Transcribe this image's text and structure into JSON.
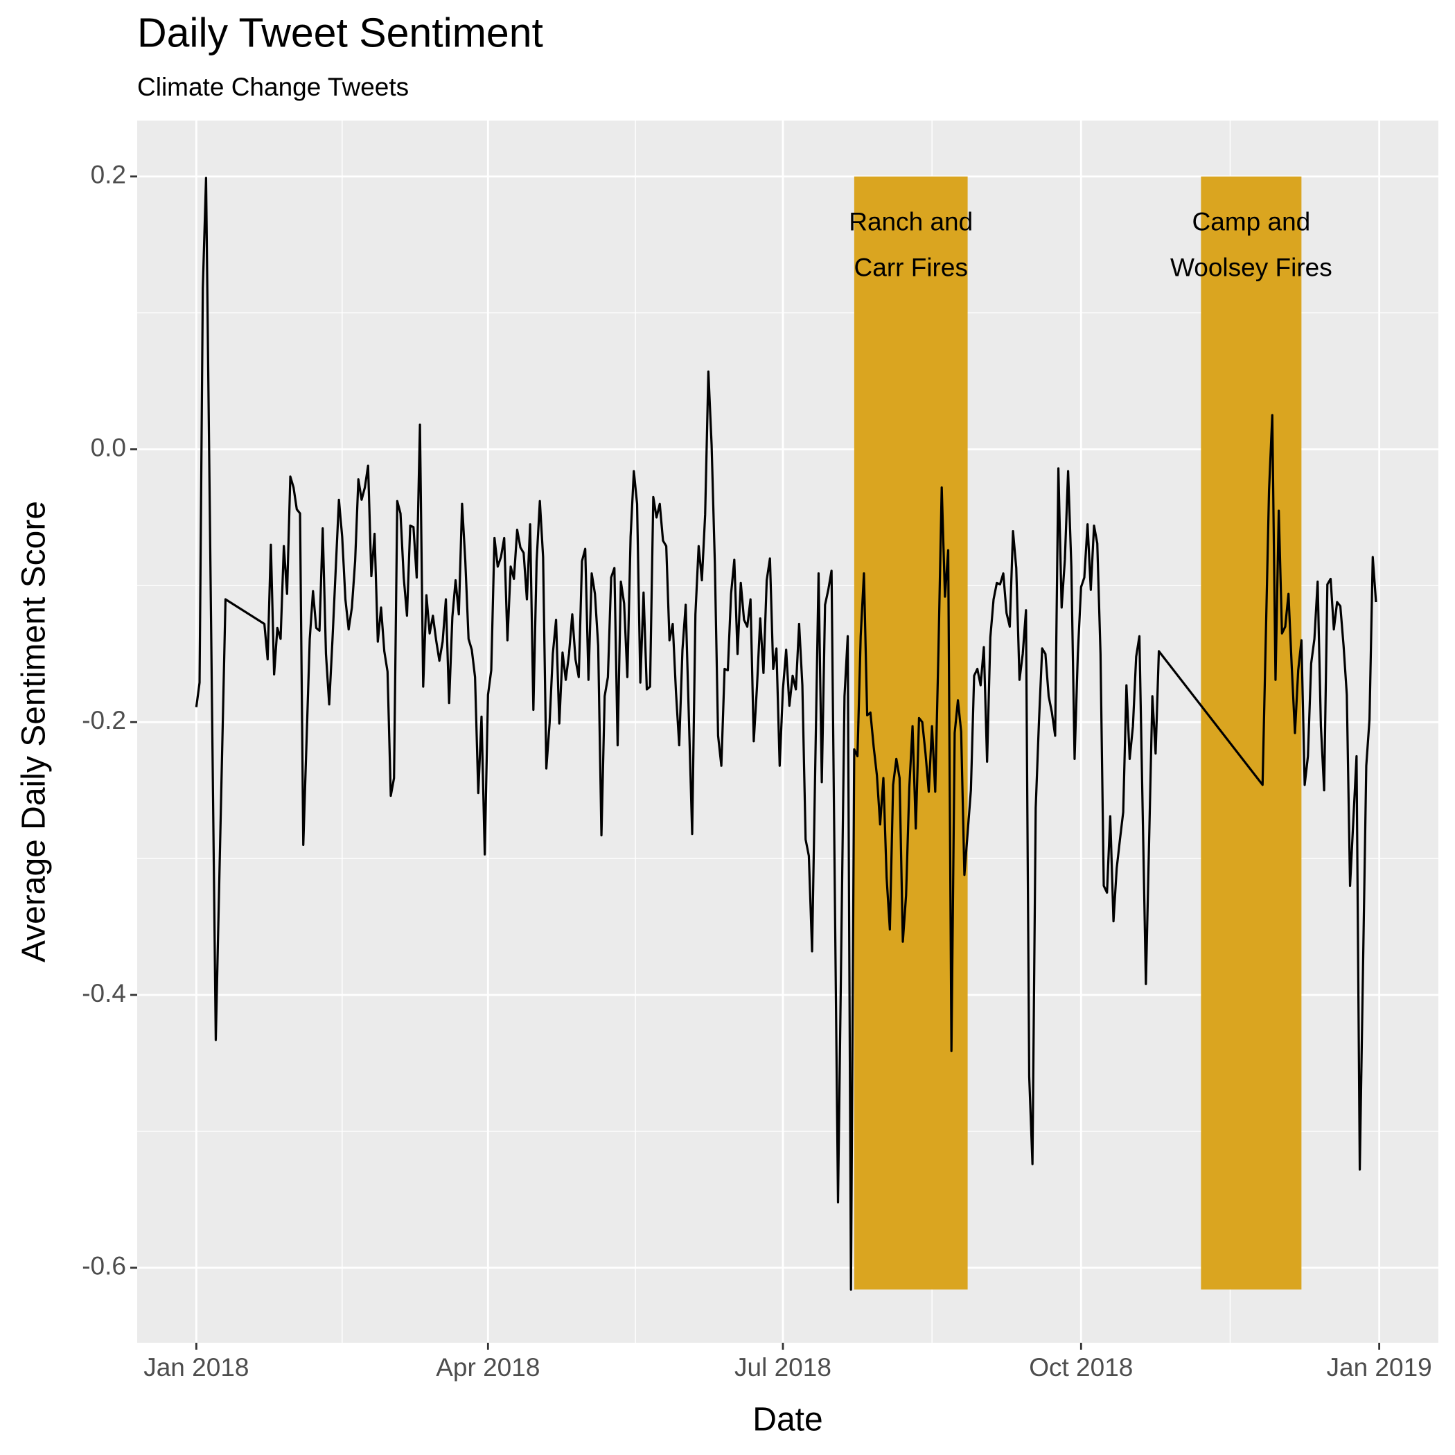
{
  "chart_data": {
    "type": "line",
    "title": "Daily Tweet Sentiment",
    "subtitle": "Climate Change Tweets",
    "x_label": "Date",
    "y_label": "Average Daily Sentiment Score",
    "xlim": [
      -18.25,
      383.25
    ],
    "ylim": [
      -0.655,
      0.241
    ],
    "xticks": [
      {
        "value": 0,
        "label": "Jan 2018"
      },
      {
        "value": 90,
        "label": "Apr 2018"
      },
      {
        "value": 181,
        "label": "Jul 2018"
      },
      {
        "value": 273,
        "label": "Oct 2018"
      },
      {
        "value": 365,
        "label": "Jan 2019"
      }
    ],
    "xminor_ticks": [
      45,
      135.5,
      227,
      319
    ],
    "yticks": [
      -0.6,
      -0.4,
      -0.2,
      {
        "value": 0,
        "label": "0.0"
      },
      0.2
    ],
    "yminor_ticks": [
      -0.5,
      -0.3,
      -0.1,
      0.1
    ],
    "grid": true,
    "shaded_periods": [
      {
        "lines": [
          "Ranch and",
          "Carr Fires"
        ],
        "xmin": 203,
        "xmax": 238,
        "ymin": -0.616,
        "ymax": 0.2,
        "color": "#DAA520"
      },
      {
        "lines": [
          "Camp and",
          "Woolsey Fires"
        ],
        "xmin": 310,
        "xmax": 341,
        "ymin": -0.616,
        "ymax": 0.2,
        "color": "#DAA520"
      }
    ],
    "series": [
      {
        "color": "#000000",
        "x": [
          0,
          1,
          2,
          3,
          6,
          9,
          21,
          22,
          23,
          24,
          25,
          26,
          27,
          28,
          29,
          30,
          31,
          32,
          33,
          35,
          36,
          37,
          38,
          39,
          40,
          41,
          42,
          44,
          45,
          46,
          47,
          48,
          49,
          50,
          51,
          52,
          53,
          54,
          55,
          56,
          57,
          58,
          59,
          60,
          61,
          62,
          63,
          64,
          65,
          66,
          67,
          68,
          69,
          70,
          71,
          72,
          73,
          74,
          75,
          76,
          77,
          78,
          79,
          80,
          81,
          82,
          83,
          84,
          85,
          86,
          87,
          88,
          89,
          90,
          91,
          92,
          93,
          94,
          95,
          96,
          97,
          98,
          99,
          100,
          101,
          102,
          103,
          104,
          105,
          106,
          107,
          108,
          109,
          110,
          111,
          112,
          113,
          114,
          115,
          116,
          117,
          118,
          119,
          120,
          121,
          122,
          123,
          124,
          125,
          126,
          127,
          128,
          129,
          130,
          131,
          132,
          133,
          134,
          135,
          136,
          137,
          138,
          139,
          140,
          141,
          142,
          143,
          144,
          145,
          146,
          147,
          148,
          149,
          150,
          151,
          153,
          154,
          155,
          156,
          157,
          158,
          159,
          160,
          161,
          162,
          163,
          164,
          165,
          166,
          167,
          168,
          169,
          170,
          171,
          172,
          173,
          174,
          175,
          176,
          177,
          178,
          179,
          180,
          181,
          182,
          183,
          184,
          185,
          186,
          187,
          188,
          189,
          190,
          192,
          193,
          194,
          195,
          196,
          198,
          200,
          201,
          202,
          203,
          204,
          205,
          206,
          207,
          208,
          209,
          210,
          211,
          212,
          213,
          214,
          215,
          216,
          217,
          218,
          219,
          220,
          221,
          222,
          223,
          224,
          225,
          226,
          227,
          228,
          229,
          230,
          231,
          232,
          233,
          234,
          235,
          236,
          237,
          239,
          240,
          241,
          242,
          243,
          244,
          245,
          246,
          247,
          248,
          249,
          250,
          251,
          252,
          253,
          254,
          255,
          256,
          257,
          258,
          259,
          260,
          261,
          262,
          263,
          264,
          265,
          266,
          267,
          268,
          269,
          270,
          271,
          272,
          273,
          274,
          275,
          276,
          277,
          278,
          279,
          280,
          281,
          282,
          283,
          284,
          285,
          286,
          287,
          288,
          289,
          290,
          291,
          293,
          295,
          296,
          297,
          329,
          331,
          332,
          333,
          334,
          335,
          336,
          337,
          338,
          339,
          340,
          341,
          342,
          343,
          344,
          345,
          346,
          347,
          348,
          349,
          350,
          351,
          352,
          353,
          354,
          355,
          356,
          358,
          359,
          361,
          362,
          363,
          364
        ],
        "values": [
          -0.189,
          -0.171,
          0.118,
          0.199,
          -0.433,
          -0.11,
          -0.128,
          -0.154,
          -0.07,
          -0.165,
          -0.131,
          -0.139,
          -0.071,
          -0.106,
          -0.02,
          -0.028,
          -0.044,
          -0.047,
          -0.29,
          -0.139,
          -0.104,
          -0.131,
          -0.133,
          -0.058,
          -0.15,
          -0.187,
          -0.14,
          -0.037,
          -0.064,
          -0.11,
          -0.132,
          -0.116,
          -0.082,
          -0.022,
          -0.037,
          -0.028,
          -0.012,
          -0.093,
          -0.062,
          -0.141,
          -0.116,
          -0.148,
          -0.163,
          -0.254,
          -0.241,
          -0.038,
          -0.047,
          -0.094,
          -0.122,
          -0.056,
          -0.057,
          -0.094,
          0.018,
          -0.174,
          -0.107,
          -0.135,
          -0.122,
          -0.14,
          -0.155,
          -0.141,
          -0.11,
          -0.186,
          -0.123,
          -0.096,
          -0.121,
          -0.04,
          -0.082,
          -0.139,
          -0.147,
          -0.167,
          -0.252,
          -0.196,
          -0.297,
          -0.18,
          -0.162,
          -0.065,
          -0.086,
          -0.079,
          -0.065,
          -0.14,
          -0.086,
          -0.095,
          -0.059,
          -0.072,
          -0.076,
          -0.11,
          -0.055,
          -0.191,
          -0.082,
          -0.038,
          -0.079,
          -0.234,
          -0.201,
          -0.15,
          -0.125,
          -0.201,
          -0.149,
          -0.169,
          -0.15,
          -0.121,
          -0.154,
          -0.167,
          -0.082,
          -0.073,
          -0.169,
          -0.091,
          -0.106,
          -0.144,
          -0.283,
          -0.181,
          -0.167,
          -0.094,
          -0.087,
          -0.217,
          -0.097,
          -0.113,
          -0.167,
          -0.064,
          -0.016,
          -0.04,
          -0.171,
          -0.105,
          -0.176,
          -0.174,
          -0.035,
          -0.05,
          -0.04,
          -0.067,
          -0.071,
          -0.14,
          -0.128,
          -0.178,
          -0.217,
          -0.147,
          -0.114,
          -0.282,
          -0.121,
          -0.071,
          -0.096,
          -0.048,
          0.057,
          0.003,
          -0.084,
          -0.21,
          -0.232,
          -0.161,
          -0.162,
          -0.106,
          -0.081,
          -0.15,
          -0.098,
          -0.125,
          -0.13,
          -0.11,
          -0.214,
          -0.174,
          -0.124,
          -0.164,
          -0.096,
          -0.08,
          -0.161,
          -0.146,
          -0.232,
          -0.176,
          -0.147,
          -0.188,
          -0.166,
          -0.176,
          -0.128,
          -0.173,
          -0.286,
          -0.298,
          -0.368,
          -0.091,
          -0.244,
          -0.114,
          -0.103,
          -0.089,
          -0.552,
          -0.181,
          -0.137,
          -0.616,
          -0.22,
          -0.225,
          -0.137,
          -0.091,
          -0.195,
          -0.193,
          -0.218,
          -0.239,
          -0.275,
          -0.241,
          -0.314,
          -0.352,
          -0.246,
          -0.227,
          -0.241,
          -0.361,
          -0.327,
          -0.248,
          -0.203,
          -0.278,
          -0.197,
          -0.2,
          -0.223,
          -0.251,
          -0.203,
          -0.251,
          -0.147,
          -0.028,
          -0.108,
          -0.074,
          -0.441,
          -0.208,
          -0.184,
          -0.207,
          -0.312,
          -0.25,
          -0.166,
          -0.161,
          -0.173,
          -0.145,
          -0.229,
          -0.138,
          -0.11,
          -0.098,
          -0.099,
          -0.091,
          -0.12,
          -0.13,
          -0.06,
          -0.087,
          -0.169,
          -0.15,
          -0.118,
          -0.46,
          -0.524,
          -0.263,
          -0.2,
          -0.146,
          -0.15,
          -0.181,
          -0.193,
          -0.21,
          -0.014,
          -0.116,
          -0.081,
          -0.016,
          -0.086,
          -0.227,
          -0.15,
          -0.101,
          -0.094,
          -0.055,
          -0.103,
          -0.056,
          -0.069,
          -0.15,
          -0.32,
          -0.325,
          -0.269,
          -0.346,
          -0.307,
          -0.286,
          -0.266,
          -0.173,
          -0.227,
          -0.203,
          -0.152,
          -0.137,
          -0.392,
          -0.181,
          -0.223,
          -0.148,
          -0.246,
          -0.03,
          0.025,
          -0.169,
          -0.045,
          -0.135,
          -0.13,
          -0.106,
          -0.159,
          -0.208,
          -0.162,
          -0.14,
          -0.246,
          -0.225,
          -0.157,
          -0.139,
          -0.097,
          -0.203,
          -0.25,
          -0.099,
          -0.095,
          -0.132,
          -0.112,
          -0.115,
          -0.144,
          -0.18,
          -0.32,
          -0.225,
          -0.528,
          -0.232,
          -0.198,
          -0.079,
          -0.112
        ]
      }
    ]
  }
}
